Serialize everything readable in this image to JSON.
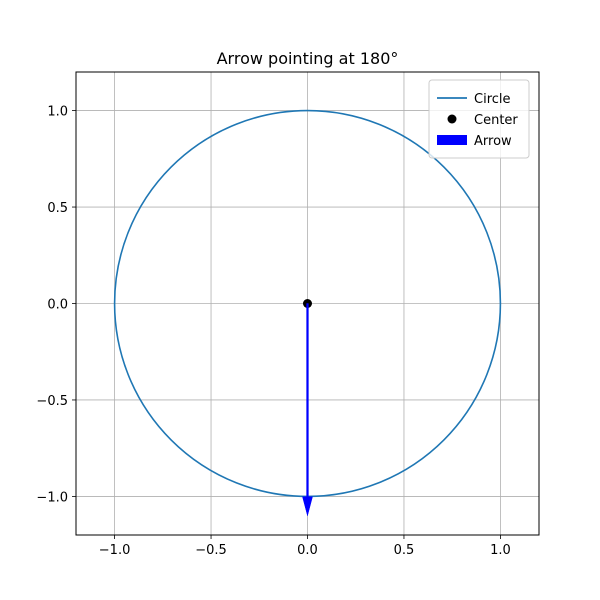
{
  "chart_data": {
    "type": "line",
    "title": "Arrow pointing at 180°",
    "xlabel": "",
    "ylabel": "",
    "xlim": [
      -1.2,
      1.2
    ],
    "ylim": [
      -1.2,
      1.2
    ],
    "xticks": [
      -1.0,
      -0.5,
      0.0,
      0.5,
      1.0
    ],
    "yticks": [
      -1.0,
      -0.5,
      0.0,
      0.5,
      1.0
    ],
    "xtick_labels": [
      "−1.0",
      "−0.5",
      "0.0",
      "0.5",
      "1.0"
    ],
    "ytick_labels": [
      "−1.0",
      "−0.5",
      "0.0",
      "0.5",
      "1.0"
    ],
    "grid": true,
    "legend_position": "top-right",
    "series": [
      {
        "name": "Circle",
        "kind": "line",
        "center": [
          0,
          0
        ],
        "radius": 1.0,
        "color": "#1f77b4"
      },
      {
        "name": "Center",
        "kind": "scatter",
        "points": [
          [
            0,
            0
          ]
        ],
        "color": "#000000"
      },
      {
        "name": "Arrow",
        "kind": "arrow",
        "start": [
          0,
          0
        ],
        "end": [
          0,
          -1.1
        ],
        "angle_deg": 180,
        "color": "#0000ff"
      }
    ],
    "legend": [
      {
        "label": "Circle",
        "color": "#1f77b4",
        "marker": "line"
      },
      {
        "label": "Center",
        "color": "#000000",
        "marker": "dot"
      },
      {
        "label": "Arrow",
        "color": "#0000ff",
        "marker": "patch"
      }
    ]
  }
}
